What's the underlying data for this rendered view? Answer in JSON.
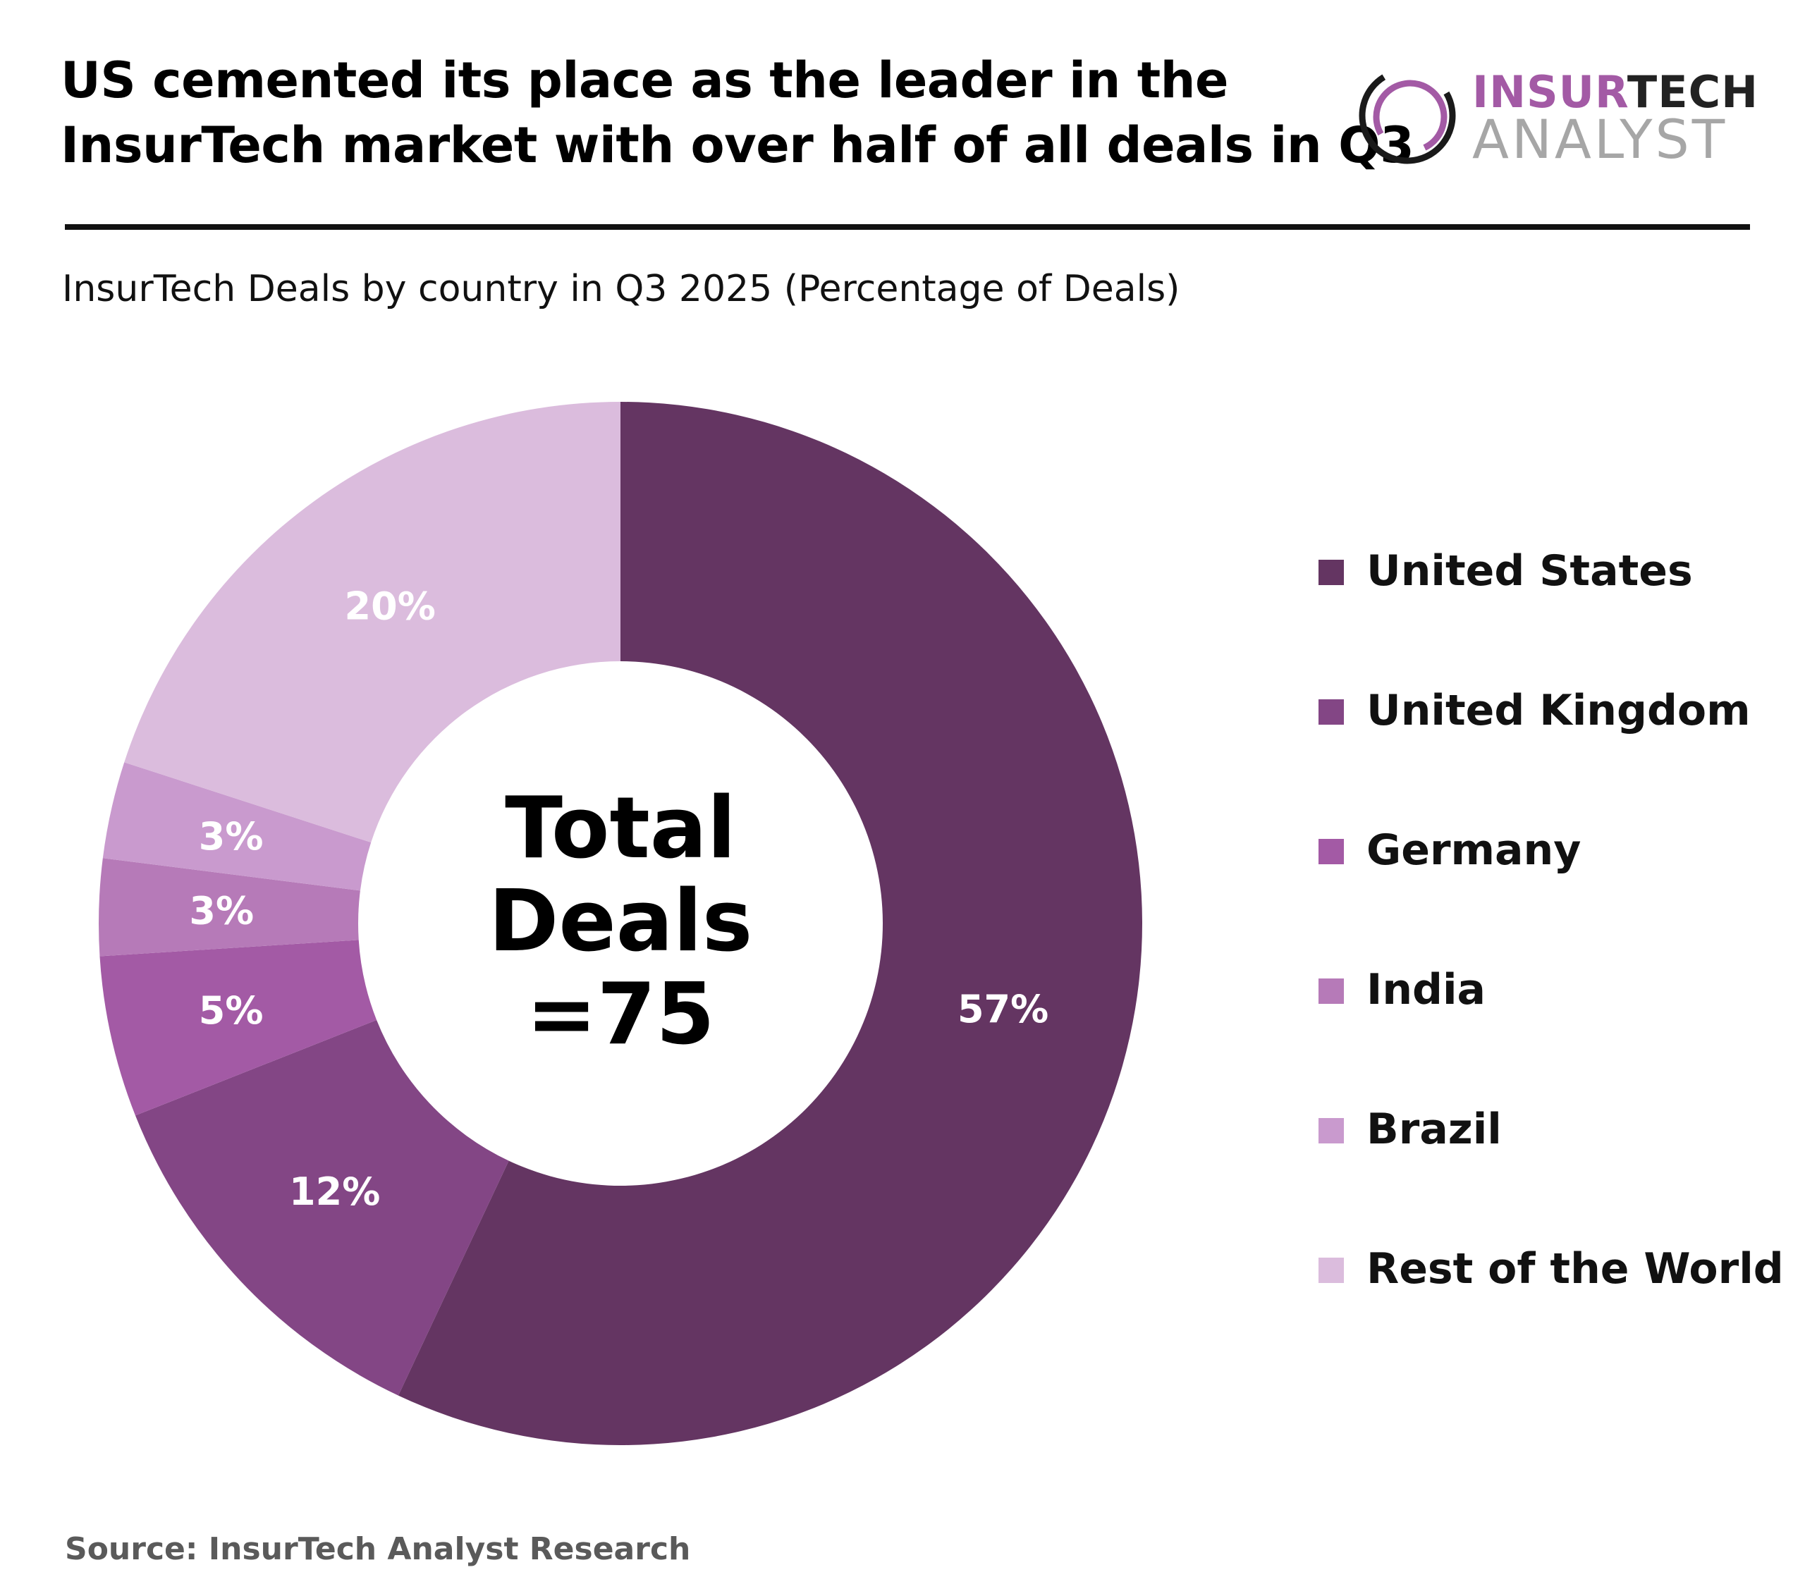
{
  "header": {
    "headline_line1": "US cemented its place as the leader in the",
    "headline_line2": "InsurTech market with over half of all deals in Q3"
  },
  "logo": {
    "line1_a": "INSUR",
    "line1_b": "TECH",
    "line2": "ANALYST"
  },
  "colors": {
    "united_states": "#643562",
    "united_kingdom": "#834685",
    "germany": "#a35aa5",
    "india": "#b67ab8",
    "brazil": "#c99ace",
    "rest_of_world": "#dbbcdd",
    "logo_purple": "#a35aa5",
    "logo_grey": "#a6a6a6"
  },
  "center_label": {
    "line1": "Total",
    "line2": "Deals",
    "line3": "=75"
  },
  "source": "Source: InsurTech Analyst Research",
  "chart_data": {
    "type": "pie",
    "subtitle": "InsurTech Deals by country in Q3 2025 (Percentage of Deals)",
    "donut": true,
    "legend_position": "right",
    "categories": [
      "United States",
      "United Kingdom",
      "Germany",
      "India",
      "Brazil",
      "Rest of the World"
    ],
    "values": [
      57,
      12,
      5,
      3,
      3,
      20
    ],
    "data_labels": [
      "57%",
      "12%",
      "5%",
      "3%",
      "3%",
      "20%"
    ],
    "colors": [
      "#643562",
      "#834685",
      "#a35aa5",
      "#b67ab8",
      "#c99ace",
      "#dbbcdd"
    ]
  }
}
